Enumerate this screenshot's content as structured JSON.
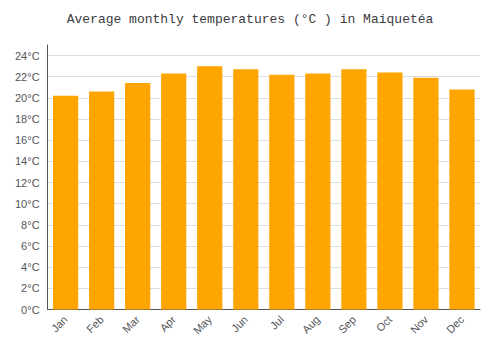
{
  "chart_data": {
    "type": "bar",
    "title": "Average monthly temperatures (°C ) in Maiquetéa",
    "categories": [
      "Jan",
      "Feb",
      "Mar",
      "Apr",
      "May",
      "Jun",
      "Jul",
      "Aug",
      "Sep",
      "Oct",
      "Nov",
      "Dec"
    ],
    "values": [
      20.2,
      20.6,
      21.4,
      22.3,
      23.0,
      22.7,
      22.2,
      22.3,
      22.7,
      22.4,
      21.9,
      20.8
    ],
    "color": "#FFA500",
    "ylim": [
      0,
      25
    ],
    "yticks": [
      {
        "value": 0,
        "label": "0°C"
      },
      {
        "value": 2,
        "label": "2°C"
      },
      {
        "value": 4,
        "label": "4°C"
      },
      {
        "value": 6,
        "label": "6°C"
      },
      {
        "value": 8,
        "label": "8°C"
      },
      {
        "value": 10,
        "label": "10°C"
      },
      {
        "value": 12,
        "label": "12°C"
      },
      {
        "value": 14,
        "label": "14°C"
      },
      {
        "value": 16,
        "label": "16°C"
      },
      {
        "value": 18,
        "label": "18°C"
      },
      {
        "value": 20,
        "label": "20°C"
      },
      {
        "value": 22,
        "label": "22°C"
      },
      {
        "value": 24,
        "label": "24°C"
      }
    ],
    "grid": true
  }
}
